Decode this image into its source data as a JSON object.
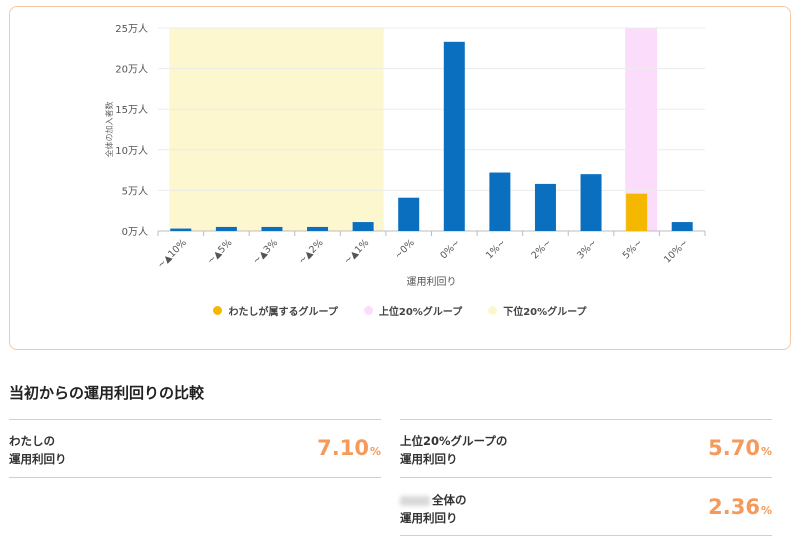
{
  "chart_data": {
    "type": "bar",
    "categories": [
      "~▲10%",
      "~▲5%",
      "~▲3%",
      "~▲2%",
      "~▲1%",
      "~0%",
      "0%~",
      "1%~",
      "2%~",
      "3%~",
      "5%~",
      "10%~"
    ],
    "values": [
      0.3,
      0.5,
      0.5,
      0.5,
      1.1,
      4.1,
      23.3,
      7.2,
      5.8,
      7.0,
      4.6,
      1.1
    ],
    "bar_colors": [
      "#0a6fbe",
      "#0a6fbe",
      "#0a6fbe",
      "#0a6fbe",
      "#0a6fbe",
      "#0a6fbe",
      "#0a6fbe",
      "#0a6fbe",
      "#0a6fbe",
      "#0a6fbe",
      "#f5b800",
      "#0a6fbe"
    ],
    "yticks": [
      "0万人",
      "5万人",
      "10万人",
      "15万人",
      "20万人",
      "25万人"
    ],
    "ylim": [
      0,
      25
    ],
    "xlabel": "運用利回り",
    "ylabel": "全体の加入者数",
    "highlight_bands": [
      {
        "name": "下位20%グループ",
        "from_category": 0,
        "to_category": 4,
        "color": "#fdf7cf"
      },
      {
        "name": "上位20%グループ",
        "from_category": 10,
        "to_category": 10,
        "color": "#fbdcfb"
      }
    ],
    "legend": [
      {
        "label": "わたしが属するグループ",
        "color": "#f5b800"
      },
      {
        "label": "上位20%グループ",
        "color": "#fbdcfb"
      },
      {
        "label": "下位20%グループ",
        "color": "#fdf7cf"
      }
    ],
    "grid": true
  },
  "comparison": {
    "title": "当初からの運用利回りの比較",
    "mine": {
      "label_line1": "わたしの",
      "label_line2": "運用利回り",
      "value": "7.10",
      "unit": "%"
    },
    "top20": {
      "label_line1": "上位20%グループの",
      "label_line2": "運用利回り",
      "value": "5.70",
      "unit": "%"
    },
    "overall": {
      "label_line1": "全体の",
      "label_line2": "運用利回り",
      "value": "2.36",
      "unit": "%"
    }
  }
}
